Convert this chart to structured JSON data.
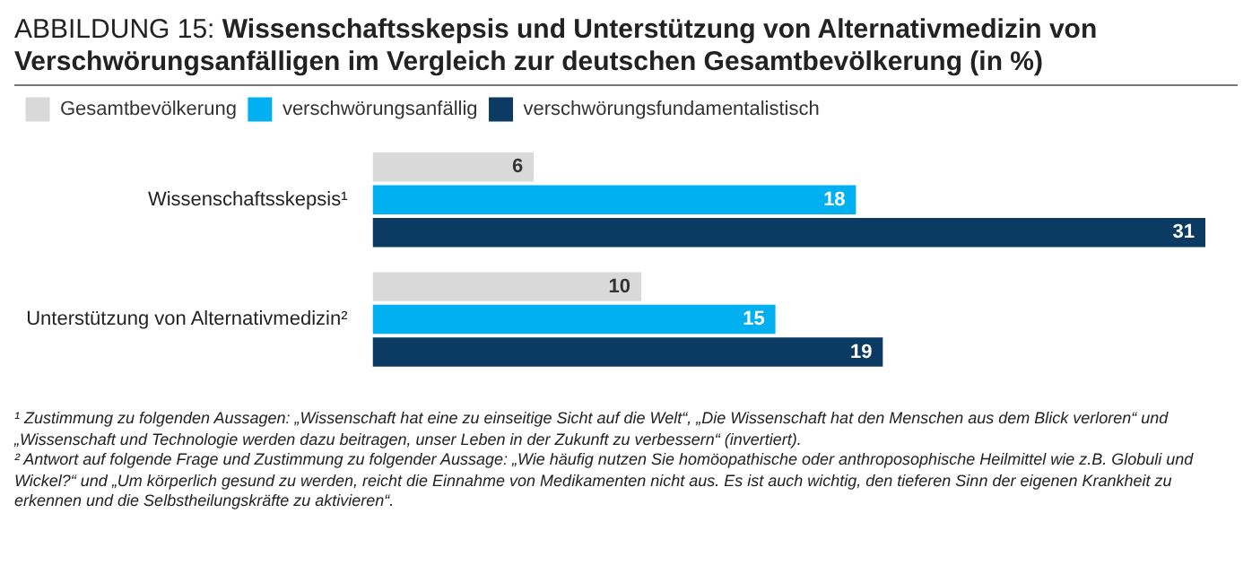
{
  "chart_data": {
    "type": "bar",
    "orientation": "horizontal",
    "title": "ABBILDUNG 15: Wissenschaftsskepsis und Unterstützung von Alternativmedizin von Verschwörungsanfälligen im Vergleich zur deutschen Gesamtbevölkerung (in %)",
    "categories": [
      "Wissenschaftsskepsis¹",
      "Unterstützung von Alternativmedizin²"
    ],
    "series": [
      {
        "name": "Gesamtbevölkerung",
        "color": "#d9d9d9",
        "values": [
          6,
          10
        ]
      },
      {
        "name": "verschwörungsanfällig",
        "color": "#00b0f0",
        "values": [
          18,
          15
        ]
      },
      {
        "name": "verschwörungsfundamentalistisch",
        "color": "#0b3a62",
        "values": [
          31,
          19
        ]
      }
    ],
    "data_labels": true,
    "legend": "top left",
    "annotations": [
      "¹ Zustimmung zu folgenden Aussagen:  „Wissenschaft hat eine zu einseitige Sicht auf die Welt“, „Die Wissenschaft hat den Menschen aus dem Blick verloren“ und „Wissenschaft und Technologie werden dazu beitragen, unser Leben in der Zukunft zu verbessern“ (invertiert).",
      "² Antwort auf folgende Frage und Zustimmung zu folgender Aussage: „Wie häufig nutzen Sie homöopathische oder anthroposophische Heilmittel wie z.B. Globuli und Wickel?“ und „Um körperlich gesund zu werden, reicht die Einnahme von Medikamenten nicht aus. Es ist auch wichtig, den tieferen Sinn der eigenen Krankheit zu erkennen und die Selbstheilungskräfte zu aktivieren“."
    ]
  }
}
